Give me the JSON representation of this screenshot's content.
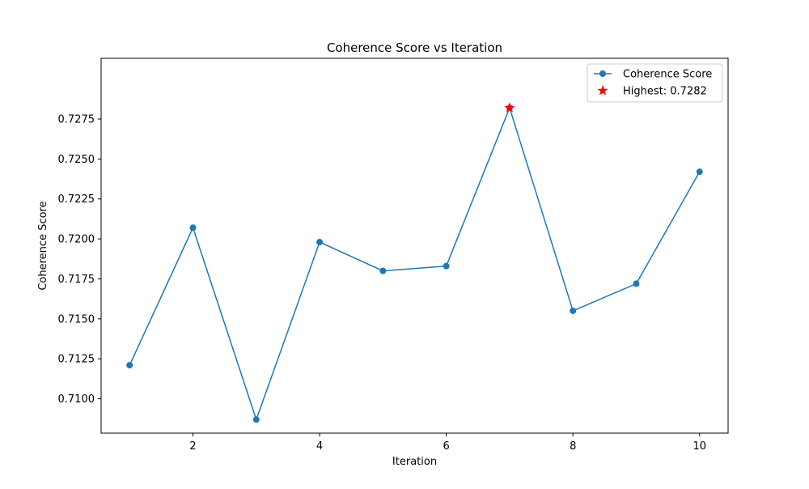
{
  "chart_data": {
    "type": "line",
    "title": "Coherence Score vs Iteration",
    "xlabel": "Iteration",
    "ylabel": "Coherence Score",
    "xlim": [
      0.55,
      10.45
    ],
    "ylim": [
      0.70785,
      0.7313
    ],
    "xticks": [
      2,
      4,
      6,
      8,
      10
    ],
    "xtick_labels": [
      "2",
      "4",
      "6",
      "8",
      "10"
    ],
    "yticks": [
      0.71,
      0.7125,
      0.715,
      0.7175,
      0.72,
      0.7225,
      0.725,
      0.7275
    ],
    "ytick_labels": [
      "0.7100",
      "0.7125",
      "0.7150",
      "0.7175",
      "0.7200",
      "0.7225",
      "0.7250",
      "0.7275"
    ],
    "grid": false,
    "legend_position": "upper right",
    "series": [
      {
        "name": "Coherence Score",
        "color": "#1f77b4",
        "marker": "circle",
        "x": [
          1,
          2,
          3,
          4,
          5,
          6,
          7,
          8,
          9,
          10
        ],
        "y": [
          0.7121,
          0.7207,
          0.7087,
          0.7198,
          0.718,
          0.7183,
          0.7282,
          0.7155,
          0.7172,
          0.7242
        ]
      }
    ],
    "highlight": {
      "label": "Highest: 0.7282",
      "color": "#ff0000",
      "marker": "star",
      "x": 7,
      "y": 0.7282
    }
  }
}
